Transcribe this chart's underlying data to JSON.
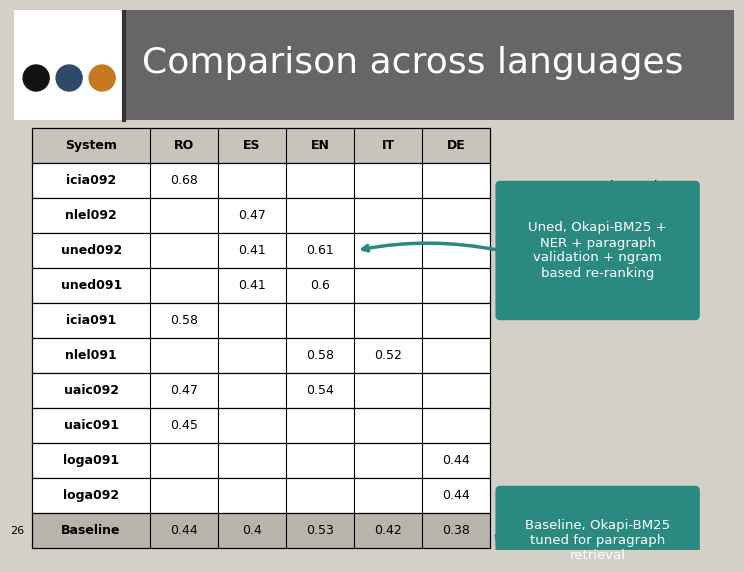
{
  "title": "Comparison across languages",
  "slide_bg": "#d4d0c8",
  "title_bar_bg": "#666666",
  "title_color": "#ffffff",
  "dot_colors": [
    "#111111",
    "#2e4a6a",
    "#c87820"
  ],
  "columns": [
    "System",
    "RO",
    "ES",
    "EN",
    "IT",
    "DE"
  ],
  "rows": [
    [
      "icia092",
      "0.68",
      "",
      "",
      "",
      ""
    ],
    [
      "nlel092",
      "",
      "0.47",
      "",
      "",
      ""
    ],
    [
      "uned092",
      "",
      "0.41",
      "0.61",
      "",
      ""
    ],
    [
      "uned091",
      "",
      "0.41",
      "0.6",
      "",
      ""
    ],
    [
      "icia091",
      "0.58",
      "",
      "",
      "",
      ""
    ],
    [
      "nlel091",
      "",
      "",
      "0.58",
      "0.52",
      ""
    ],
    [
      "uaic092",
      "0.47",
      "",
      "0.54",
      "",
      ""
    ],
    [
      "uaic091",
      "0.45",
      "",
      "",
      "",
      ""
    ],
    [
      "loga091",
      "",
      "",
      "",
      "",
      "0.44"
    ],
    [
      "loga092",
      "",
      "",
      "",
      "",
      "0.44"
    ],
    [
      "Baseline",
      "0.44",
      "0.4",
      "0.53",
      "0.42",
      "0.38"
    ]
  ],
  "header_bg": "#c8c4bc",
  "baseline_row_bg": "#b8b4ac",
  "baseline_row_num": "26",
  "callout1_text": "Systems above the\nbaselines",
  "callout2_text": "Uned, Okapi-BM25 +\nNER + paragraph\nvalidation + ngram\nbased re-ranking",
  "callout3_text": "Baseline, Okapi-BM25\ntuned for paragraph\nretrieval",
  "callout_color": "#2a8a80",
  "title_left_bg": "#ffffff"
}
